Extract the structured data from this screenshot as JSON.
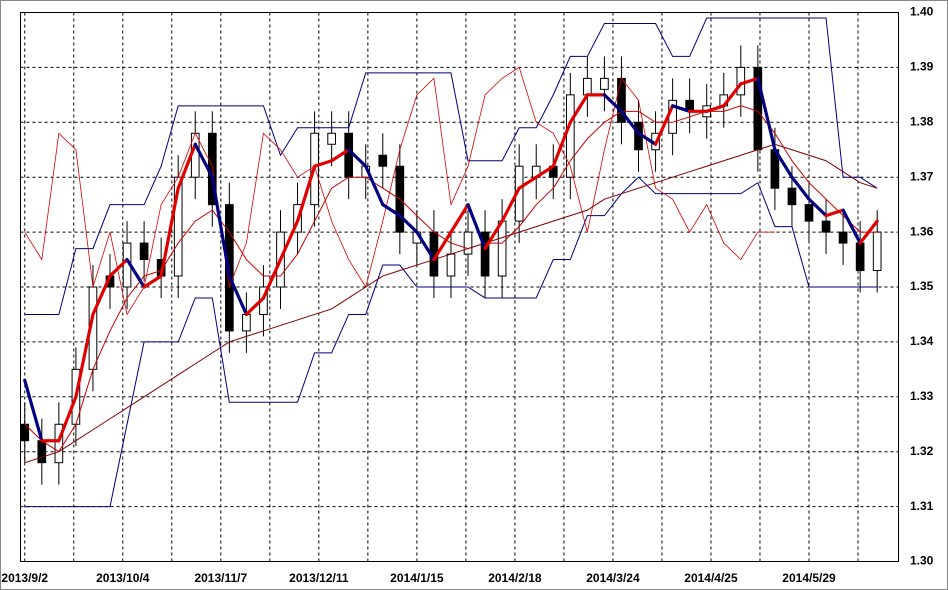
{
  "chart_data": {
    "type": "candlestick",
    "x": [
      0,
      4,
      8,
      12,
      16,
      20,
      24,
      28,
      32,
      36,
      40,
      44,
      48,
      52,
      56,
      60,
      64,
      68,
      72,
      76,
      80,
      84,
      88,
      92,
      96,
      100,
      104,
      108,
      112,
      116,
      120,
      124,
      128,
      132,
      136,
      140,
      144,
      148,
      152,
      156,
      160,
      164,
      168,
      172,
      176,
      180,
      184,
      188,
      192,
      196,
      200
    ],
    "open": [
      1.325,
      1.322,
      1.318,
      1.325,
      1.335,
      1.352,
      1.35,
      1.358,
      1.355,
      1.352,
      1.37,
      1.378,
      1.365,
      1.342,
      1.345,
      1.35,
      1.36,
      1.365,
      1.376,
      1.378,
      1.37,
      1.374,
      1.372,
      1.358,
      1.36,
      1.352,
      1.356,
      1.36,
      1.352,
      1.362,
      1.37,
      1.372,
      1.37,
      1.385,
      1.386,
      1.388,
      1.38,
      1.375,
      1.378,
      1.384,
      1.381,
      1.383,
      1.385,
      1.39,
      1.375,
      1.368,
      1.365,
      1.362,
      1.36,
      1.358,
      1.353
    ],
    "high": [
      1.329,
      1.326,
      1.329,
      1.339,
      1.354,
      1.356,
      1.362,
      1.362,
      1.359,
      1.374,
      1.382,
      1.382,
      1.369,
      1.349,
      1.354,
      1.364,
      1.369,
      1.382,
      1.382,
      1.382,
      1.376,
      1.378,
      1.376,
      1.364,
      1.364,
      1.36,
      1.364,
      1.364,
      1.366,
      1.376,
      1.376,
      1.376,
      1.389,
      1.392,
      1.392,
      1.392,
      1.384,
      1.382,
      1.388,
      1.388,
      1.387,
      1.389,
      1.394,
      1.394,
      1.379,
      1.372,
      1.369,
      1.366,
      1.364,
      1.362,
      1.364
    ],
    "low": [
      1.318,
      1.314,
      1.314,
      1.321,
      1.331,
      1.346,
      1.346,
      1.351,
      1.348,
      1.348,
      1.366,
      1.361,
      1.338,
      1.338,
      1.341,
      1.346,
      1.356,
      1.361,
      1.372,
      1.366,
      1.366,
      1.368,
      1.356,
      1.354,
      1.348,
      1.348,
      1.352,
      1.348,
      1.348,
      1.358,
      1.366,
      1.366,
      1.366,
      1.381,
      1.382,
      1.376,
      1.371,
      1.371,
      1.374,
      1.378,
      1.377,
      1.379,
      1.381,
      1.371,
      1.364,
      1.361,
      1.358,
      1.356,
      1.354,
      1.349,
      1.349
    ],
    "close": [
      1.322,
      1.318,
      1.325,
      1.335,
      1.35,
      1.35,
      1.358,
      1.355,
      1.352,
      1.37,
      1.378,
      1.365,
      1.342,
      1.345,
      1.35,
      1.36,
      1.365,
      1.378,
      1.378,
      1.37,
      1.372,
      1.372,
      1.36,
      1.36,
      1.352,
      1.356,
      1.36,
      1.352,
      1.362,
      1.372,
      1.372,
      1.37,
      1.385,
      1.388,
      1.388,
      1.38,
      1.375,
      1.378,
      1.384,
      1.382,
      1.383,
      1.385,
      1.39,
      1.375,
      1.368,
      1.365,
      1.362,
      1.36,
      1.358,
      1.353,
      1.36
    ],
    "up_color": "#ffffff",
    "down_color": "#000000",
    "series": [
      {
        "color": "#000080",
        "width": 1,
        "values": [
          1.345,
          1.345,
          1.345,
          1.357,
          1.357,
          1.365,
          1.365,
          1.365,
          1.372,
          1.383,
          1.383,
          1.383,
          1.383,
          1.383,
          1.383,
          1.374,
          1.379,
          1.379,
          1.379,
          1.379,
          1.389,
          1.389,
          1.389,
          1.389,
          1.389,
          1.389,
          1.373,
          1.373,
          1.373,
          1.379,
          1.379,
          1.385,
          1.392,
          1.392,
          1.398,
          1.398,
          1.398,
          1.398,
          1.392,
          1.392,
          1.399,
          1.399,
          1.399,
          1.399,
          1.399,
          1.399,
          1.399,
          1.399,
          1.37,
          1.37,
          1.368
        ]
      },
      {
        "color": "#000080",
        "width": 1,
        "values": [
          1.31,
          1.31,
          1.31,
          1.31,
          1.31,
          1.31,
          1.325,
          1.34,
          1.34,
          1.34,
          1.348,
          1.348,
          1.329,
          1.329,
          1.329,
          1.329,
          1.329,
          1.338,
          1.338,
          1.345,
          1.345,
          1.354,
          1.354,
          1.35,
          1.35,
          1.35,
          1.35,
          1.348,
          1.348,
          1.348,
          1.348,
          1.355,
          1.355,
          1.363,
          1.363,
          1.367,
          1.37,
          1.367,
          1.367,
          1.367,
          1.367,
          1.367,
          1.367,
          1.369,
          1.361,
          1.361,
          1.35,
          1.35,
          1.35,
          1.35,
          1.35
        ]
      },
      {
        "color": "#dd0000",
        "width": 0.8,
        "values": [
          1.36,
          1.355,
          1.378,
          1.375,
          1.35,
          1.36,
          1.345,
          1.35,
          1.365,
          1.37,
          1.378,
          1.372,
          1.35,
          1.358,
          1.378,
          1.375,
          1.37,
          1.372,
          1.362,
          1.355,
          1.35,
          1.362,
          1.375,
          1.385,
          1.388,
          1.365,
          1.372,
          1.385,
          1.388,
          1.39,
          1.38,
          1.378,
          1.372,
          1.36,
          1.375,
          1.388,
          1.384,
          1.368,
          1.366,
          1.36,
          1.365,
          1.358,
          1.355,
          1.36,
          1.36,
          null,
          null,
          null,
          null,
          null,
          null
        ]
      },
      {
        "color": "#cc0000",
        "width": 1,
        "values": [
          1.325,
          1.322,
          1.32,
          1.325,
          1.335,
          1.342,
          1.348,
          1.352,
          1.353,
          1.358,
          1.362,
          1.364,
          1.36,
          1.355,
          1.352,
          1.352,
          1.356,
          1.362,
          1.368,
          1.37,
          1.37,
          1.368,
          1.366,
          1.363,
          1.36,
          1.358,
          1.357,
          1.358,
          1.358,
          1.361,
          1.365,
          1.368,
          1.373,
          1.377,
          1.38,
          1.382,
          1.382,
          1.38,
          1.38,
          1.381,
          1.382,
          1.382,
          1.383,
          1.382,
          1.378,
          1.373,
          1.369,
          1.366,
          1.363,
          1.36,
          1.36
        ]
      },
      {
        "color": "#800000",
        "width": 1,
        "values": [
          1.318,
          1.319,
          1.32,
          1.322,
          1.324,
          1.326,
          1.328,
          1.33,
          1.332,
          1.334,
          1.336,
          1.338,
          1.34,
          1.341,
          1.342,
          1.343,
          1.344,
          1.345,
          1.346,
          1.348,
          1.35,
          1.352,
          1.353,
          1.354,
          1.355,
          1.356,
          1.357,
          1.358,
          1.359,
          1.36,
          1.361,
          1.362,
          1.363,
          1.364,
          1.366,
          1.367,
          1.368,
          1.369,
          1.37,
          1.371,
          1.372,
          1.373,
          1.374,
          1.375,
          1.376,
          1.375,
          1.374,
          1.373,
          1.371,
          1.369,
          1.368
        ]
      },
      {
        "color": "#e00000",
        "down_color": "#000080",
        "width": 3.2,
        "values": [
          1.333,
          1.322,
          1.322,
          1.33,
          1.345,
          1.352,
          1.355,
          1.35,
          1.352,
          1.368,
          1.376,
          1.37,
          1.352,
          1.345,
          1.348,
          1.355,
          1.362,
          1.372,
          1.373,
          1.375,
          1.372,
          1.365,
          1.363,
          1.36,
          1.355,
          1.36,
          1.365,
          1.357,
          1.362,
          1.368,
          1.37,
          1.372,
          1.38,
          1.385,
          1.385,
          1.382,
          1.378,
          1.376,
          1.383,
          1.382,
          1.382,
          1.383,
          1.387,
          1.388,
          1.375,
          1.37,
          1.366,
          1.363,
          1.364,
          1.358,
          1.362
        ]
      }
    ],
    "xlim": [
      -1,
      205
    ],
    "ylim": [
      1.3,
      1.4
    ],
    "xticks": [
      {
        "value": 0,
        "label": "2013/9/2"
      },
      {
        "value": 23,
        "label": "2013/10/4"
      },
      {
        "value": 46,
        "label": "2013/11/7"
      },
      {
        "value": 69,
        "label": "2013/12/11"
      },
      {
        "value": 92,
        "label": "2014/1/15"
      },
      {
        "value": 115,
        "label": "2014/2/18"
      },
      {
        "value": 138,
        "label": "2014/3/24"
      },
      {
        "value": 161,
        "label": "2014/4/25"
      },
      {
        "value": 184,
        "label": "2014/5/29"
      }
    ],
    "yticks": [
      {
        "value": 1.3,
        "label": "1.30"
      },
      {
        "value": 1.31,
        "label": "1.31"
      },
      {
        "value": 1.32,
        "label": "1.32"
      },
      {
        "value": 1.33,
        "label": "1.33"
      },
      {
        "value": 1.34,
        "label": "1.34"
      },
      {
        "value": 1.35,
        "label": "1.35"
      },
      {
        "value": 1.36,
        "label": "1.36"
      },
      {
        "value": 1.37,
        "label": "1.37"
      },
      {
        "value": 1.38,
        "label": "1.38"
      },
      {
        "value": 1.39,
        "label": "1.39"
      },
      {
        "value": 1.4,
        "label": "1.40"
      }
    ],
    "grid": true
  }
}
